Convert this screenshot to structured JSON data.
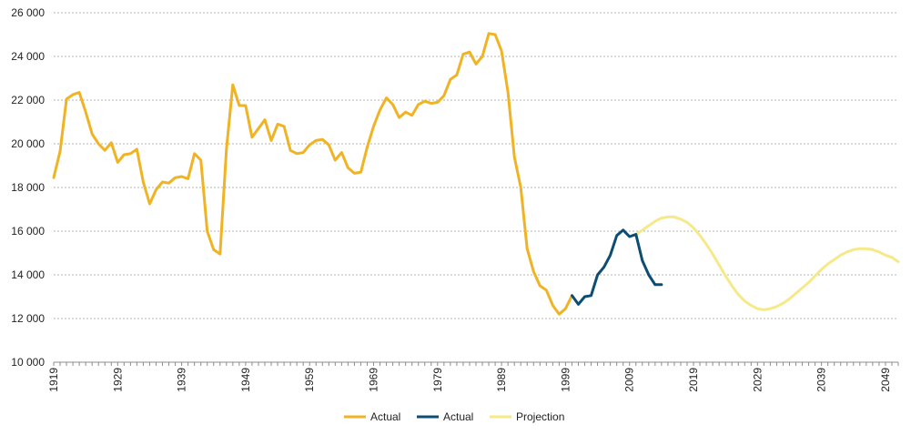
{
  "chart_data": {
    "type": "line",
    "title": "",
    "xlabel": "",
    "ylabel": "",
    "xlim": [
      1919,
      2051
    ],
    "ylim": [
      10000,
      26000
    ],
    "grid": true,
    "legend_position": "bottom",
    "y_ticks": [
      {
        "value": 10000,
        "label": "10 000"
      },
      {
        "value": 12000,
        "label": "12 000"
      },
      {
        "value": 14000,
        "label": "14 000"
      },
      {
        "value": 16000,
        "label": "16 000"
      },
      {
        "value": 18000,
        "label": "18 000"
      },
      {
        "value": 20000,
        "label": "20 000"
      },
      {
        "value": 22000,
        "label": "22 000"
      },
      {
        "value": 24000,
        "label": "24 000"
      },
      {
        "value": 26000,
        "label": "26 000"
      }
    ],
    "x_ticks": [
      {
        "value": 1919,
        "label": "1919"
      },
      {
        "value": 1929,
        "label": "1929"
      },
      {
        "value": 1939,
        "label": "1939"
      },
      {
        "value": 1949,
        "label": "1949"
      },
      {
        "value": 1959,
        "label": "1959"
      },
      {
        "value": 1969,
        "label": "1969"
      },
      {
        "value": 1979,
        "label": "1979"
      },
      {
        "value": 1989,
        "label": "1989"
      },
      {
        "value": 1999,
        "label": "1999"
      },
      {
        "value": 2009,
        "label": "2009"
      },
      {
        "value": 2019,
        "label": "2019"
      },
      {
        "value": 2029,
        "label": "2029"
      },
      {
        "value": 2039,
        "label": "2039"
      },
      {
        "value": 2049,
        "label": "2049"
      }
    ],
    "series": [
      {
        "name": "Actual",
        "color": "#f0b323",
        "x": [
          1919,
          1920,
          1921,
          1922,
          1923,
          1924,
          1925,
          1926,
          1927,
          1928,
          1929,
          1930,
          1931,
          1932,
          1933,
          1934,
          1935,
          1936,
          1937,
          1938,
          1939,
          1940,
          1941,
          1942,
          1943,
          1944,
          1945,
          1946,
          1947,
          1948,
          1949,
          1950,
          1951,
          1952,
          1953,
          1954,
          1955,
          1956,
          1957,
          1958,
          1959,
          1960,
          1961,
          1962,
          1963,
          1964,
          1965,
          1966,
          1967,
          1968,
          1969,
          1970,
          1971,
          1972,
          1973,
          1974,
          1975,
          1976,
          1977,
          1978,
          1979,
          1980,
          1981,
          1982,
          1983,
          1984,
          1985,
          1986,
          1987,
          1988,
          1989,
          1990,
          1991,
          1992,
          1993,
          1994,
          1995,
          1996,
          1997,
          1998,
          1999,
          2000
        ],
        "values": [
          18450,
          19650,
          22050,
          22250,
          22350,
          21450,
          20450,
          20000,
          19700,
          20050,
          19150,
          19500,
          19550,
          19750,
          18250,
          17250,
          17900,
          18250,
          18200,
          18450,
          18500,
          18400,
          19550,
          19250,
          16000,
          15150,
          14950,
          19750,
          22700,
          21750,
          21750,
          20300,
          20700,
          21100,
          20150,
          20900,
          20800,
          19700,
          19550,
          19600,
          19950,
          20150,
          20200,
          19950,
          19250,
          19600,
          18900,
          18650,
          18700,
          19850,
          20800,
          21550,
          22100,
          21800,
          21200,
          21450,
          21300,
          21800,
          21950,
          21850,
          21900,
          22200,
          22950,
          23150,
          24100,
          24200,
          23650,
          24000,
          25050,
          25000,
          24250,
          22350,
          19400,
          18000,
          15200,
          14150,
          13500,
          13300,
          12600,
          12200,
          12450,
          13050
        ]
      },
      {
        "name": "Actual",
        "color": "#0d4d73",
        "x": [
          2000,
          2001,
          2002,
          2003,
          2004,
          2005,
          2006,
          2007,
          2008,
          2009,
          2010,
          2011,
          2012,
          2013,
          2014
        ],
        "values": [
          13050,
          12650,
          13000,
          13050,
          14000,
          14350,
          14900,
          15800,
          16050,
          15750,
          15850,
          14650,
          14000,
          13550,
          13550
        ]
      },
      {
        "name": "Projection",
        "color": "#f6e98a",
        "x": [
          2010,
          2011,
          2012,
          2013,
          2014,
          2015,
          2016,
          2017,
          2018,
          2019,
          2020,
          2021,
          2022,
          2023,
          2024,
          2025,
          2026,
          2027,
          2028,
          2029,
          2030,
          2031,
          2032,
          2033,
          2034,
          2035,
          2036,
          2037,
          2038,
          2039,
          2040,
          2041,
          2042,
          2043,
          2044,
          2045,
          2046,
          2047,
          2048,
          2049,
          2050,
          2051
        ],
        "values": [
          15850,
          16050,
          16250,
          16450,
          16600,
          16650,
          16650,
          16550,
          16400,
          16150,
          15800,
          15400,
          14950,
          14450,
          13950,
          13500,
          13100,
          12800,
          12600,
          12450,
          12400,
          12450,
          12550,
          12700,
          12900,
          13150,
          13400,
          13650,
          13950,
          14250,
          14500,
          14700,
          14900,
          15050,
          15150,
          15200,
          15200,
          15150,
          15050,
          14900,
          14800,
          14600
        ]
      }
    ]
  }
}
